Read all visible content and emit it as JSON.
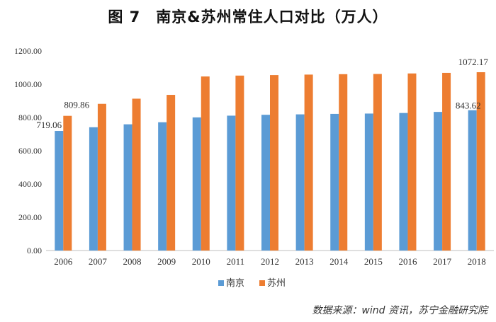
{
  "title": "图 7　南京&苏州常住人口对比（万人）",
  "source_note": "数据来源：wind 资讯，苏宁金融研究院",
  "chart_data": {
    "type": "bar",
    "title": "图 7　南京&苏州常住人口对比（万人）",
    "xlabel": "",
    "ylabel": "",
    "ylim": [
      0,
      1200
    ],
    "yticks": [
      "0.00",
      "200.00",
      "400.00",
      "600.00",
      "800.00",
      "1000.00",
      "1200.00"
    ],
    "grid": false,
    "legend_position": "bottom",
    "categories": [
      "2006",
      "2007",
      "2008",
      "2009",
      "2010",
      "2011",
      "2012",
      "2013",
      "2014",
      "2015",
      "2016",
      "2017",
      "2018"
    ],
    "series": [
      {
        "name": "南京",
        "color": "#5b9bd5",
        "values": [
          719.06,
          741.3,
          758.89,
          771.31,
          800.47,
          810.91,
          816.1,
          818.78,
          821.61,
          823.59,
          827.0,
          833.5,
          843.62
        ]
      },
      {
        "name": "苏州",
        "color": "#ed7d31",
        "values": [
          809.86,
          882.0,
          913.0,
          936.0,
          1046.6,
          1051.87,
          1054.91,
          1057.87,
          1060.4,
          1061.6,
          1064.74,
          1068.36,
          1072.17
        ]
      }
    ],
    "data_labels": [
      {
        "series": 0,
        "index": 0,
        "text": "719.06"
      },
      {
        "series": 1,
        "index": 0,
        "text": "809.86"
      },
      {
        "series": 0,
        "index": 12,
        "text": "843.62"
      },
      {
        "series": 1,
        "index": 12,
        "text": "1072.17"
      }
    ]
  }
}
